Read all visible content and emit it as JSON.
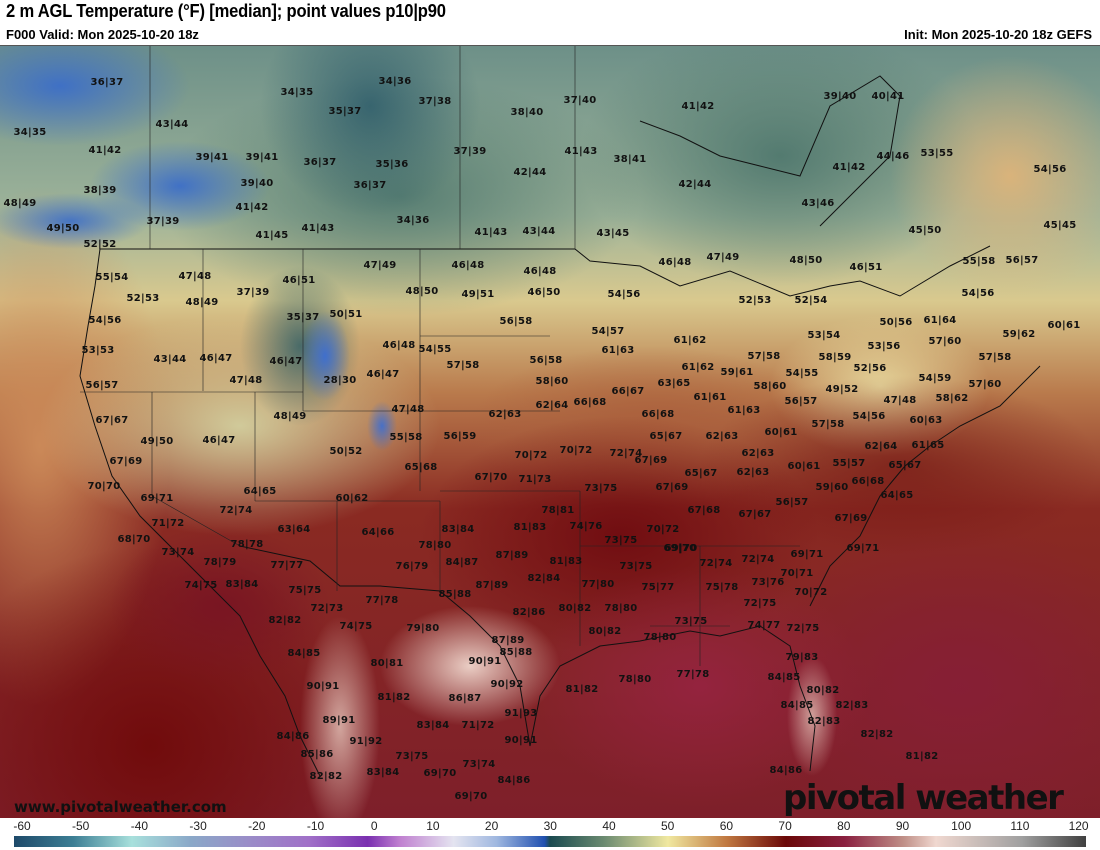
{
  "header": {
    "title": "2 m AGL Temperature (°F) [median]; point values p10|p90",
    "valid": "F000 Valid: Mon 2025-10-20 18z",
    "init": "Init: Mon 2025-10-20 18z GEFS"
  },
  "map": {
    "point_values": [
      "36|37",
      "34|35",
      "43|44",
      "41|42",
      "39|41",
      "39|41",
      "36|37",
      "39|40",
      "38|39",
      "41|42",
      "48|49",
      "37|39",
      "49|50",
      "41|45",
      "41|43",
      "52|52",
      "34|35",
      "35|37",
      "34|36",
      "37|38",
      "38|40",
      "37|40",
      "37|39",
      "35|36",
      "36|37",
      "42|44",
      "41|43",
      "38|41",
      "42|44",
      "34|36",
      "41|43",
      "43|44",
      "43|45",
      "41|42",
      "39|40",
      "40|41",
      "44|46",
      "53|55",
      "41|42",
      "54|56",
      "43|46",
      "45|50",
      "45|45",
      "48|50",
      "46|51",
      "55|58",
      "56|57",
      "54|56",
      "52|53",
      "52|54",
      "47|49",
      "55|54",
      "47|48",
      "37|39",
      "46|51",
      "47|49",
      "46|48",
      "46|48",
      "46|50",
      "48|50",
      "49|51",
      "54|56",
      "46|48",
      "52|53",
      "48|49",
      "54|56",
      "53|53",
      "43|44",
      "46|47",
      "46|47",
      "47|48",
      "56|57",
      "35|37",
      "50|51",
      "46|48",
      "54|55",
      "28|30",
      "46|47",
      "47|48",
      "48|49",
      "67|67",
      "49|50",
      "46|47",
      "55|58",
      "50|52",
      "65|68",
      "67|69",
      "70|70",
      "69|71",
      "64|65",
      "60|62",
      "72|74",
      "71|72",
      "63|64",
      "64|66",
      "68|70",
      "78|80",
      "83|84",
      "56|58",
      "54|57",
      "61|63",
      "57|58",
      "56|58",
      "58|60",
      "61|62",
      "61|62",
      "59|61",
      "57|58",
      "63|65",
      "66|67",
      "66|68",
      "62|64",
      "62|63",
      "61|61",
      "66|68",
      "61|63",
      "65|67",
      "62|63",
      "60|61",
      "56|59",
      "70|72",
      "72|74",
      "62|63",
      "70|72",
      "67|69",
      "65|67",
      "62|63",
      "60|61",
      "67|70",
      "71|73",
      "73|75",
      "67|69",
      "59|60",
      "56|57",
      "67|68",
      "67|67",
      "67|69",
      "78|81",
      "81|83",
      "74|76",
      "70|72",
      "73|75",
      "69|70",
      "53|54",
      "50|56",
      "61|64",
      "57|60",
      "59|62",
      "60|61",
      "58|59",
      "53|56",
      "57|58",
      "54|55",
      "52|56",
      "54|59",
      "57|60",
      "58|60",
      "49|52",
      "58|62",
      "56|57",
      "47|48",
      "60|63",
      "54|56",
      "57|58",
      "61|65",
      "62|64",
      "55|57",
      "65|67",
      "66|68",
      "64|65",
      "73|74",
      "78|79",
      "74|75",
      "83|84",
      "77|77",
      "75|75",
      "72|73",
      "77|78",
      "82|82",
      "74|75",
      "79|80",
      "84|85",
      "80|81",
      "90|91",
      "81|82",
      "89|91",
      "84|86",
      "91|92",
      "85|86",
      "83|84",
      "73|75",
      "82|82",
      "83|84",
      "69|70",
      "78|78",
      "76|79",
      "84|87",
      "85|88",
      "87|89",
      "81|83",
      "87|89",
      "82|84",
      "77|80",
      "73|75",
      "69|70",
      "72|74",
      "72|74",
      "75|77",
      "75|78",
      "73|76",
      "82|86",
      "80|82",
      "78|80",
      "72|75",
      "73|75",
      "74|77",
      "72|75",
      "80|82",
      "87|89",
      "78|80",
      "85|88",
      "90|91",
      "90|92",
      "78|80",
      "77|78",
      "81|82",
      "86|87",
      "91|93",
      "71|72",
      "90|91",
      "73|74",
      "84|86",
      "69|70",
      "69|71",
      "69|71",
      "70|71",
      "70|72",
      "79|83",
      "84|85",
      "80|82",
      "84|85",
      "82|83",
      "82|83",
      "82|82",
      "81|82",
      "84|86"
    ],
    "site_url": "www.pivotalweather.com",
    "logo": "pivotal weather"
  },
  "colorbar": {
    "labels": [
      "-60",
      "-50",
      "-40",
      "-30",
      "-20",
      "-10",
      "0",
      "10",
      "20",
      "30",
      "40",
      "50",
      "60",
      "70",
      "80",
      "90",
      "100",
      "110",
      "120"
    ]
  }
}
